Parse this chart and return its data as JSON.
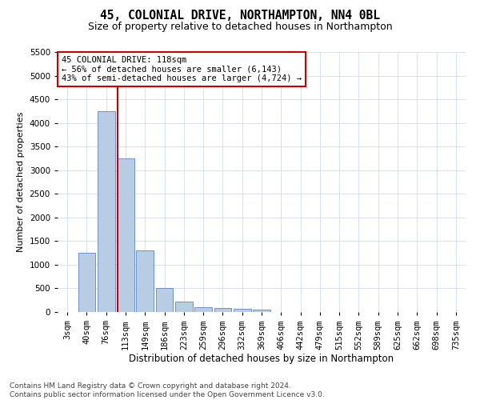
{
  "title_line1": "45, COLONIAL DRIVE, NORTHAMPTON, NN4 0BL",
  "title_line2": "Size of property relative to detached houses in Northampton",
  "xlabel": "Distribution of detached houses by size in Northampton",
  "ylabel": "Number of detached properties",
  "footnote": "Contains HM Land Registry data © Crown copyright and database right 2024.\nContains public sector information licensed under the Open Government Licence v3.0.",
  "bar_labels": [
    "3sqm",
    "40sqm",
    "76sqm",
    "113sqm",
    "149sqm",
    "186sqm",
    "223sqm",
    "259sqm",
    "296sqm",
    "332sqm",
    "369sqm",
    "406sqm",
    "442sqm",
    "479sqm",
    "515sqm",
    "552sqm",
    "589sqm",
    "625sqm",
    "662sqm",
    "698sqm",
    "735sqm"
  ],
  "bar_values": [
    0,
    1250,
    4250,
    3250,
    1300,
    500,
    220,
    100,
    80,
    60,
    50,
    0,
    0,
    0,
    0,
    0,
    0,
    0,
    0,
    0,
    0
  ],
  "bar_color": "#b8cce4",
  "bar_edge_color": "#4472c4",
  "vline_index": 2.575,
  "vline_color": "#cc0000",
  "annotation_text": "45 COLONIAL DRIVE: 118sqm\n← 56% of detached houses are smaller (6,143)\n43% of semi-detached houses are larger (4,724) →",
  "annotation_box_color": "#ffffff",
  "annotation_box_edge": "#cc0000",
  "ylim": [
    0,
    5500
  ],
  "yticks": [
    0,
    500,
    1000,
    1500,
    2000,
    2500,
    3000,
    3500,
    4000,
    4500,
    5000,
    5500
  ],
  "title_fontsize": 10.5,
  "subtitle_fontsize": 9,
  "xlabel_fontsize": 8.5,
  "ylabel_fontsize": 8,
  "tick_fontsize": 7.5,
  "annotation_fontsize": 7.5,
  "footnote_fontsize": 6.5,
  "bg_color": "#ffffff",
  "grid_color": "#c8d4e8"
}
